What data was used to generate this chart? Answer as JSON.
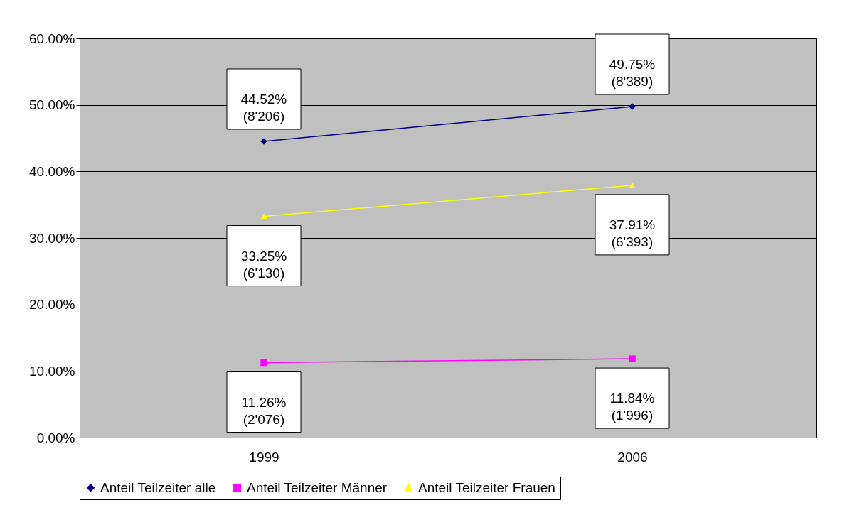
{
  "chart_data": {
    "type": "line",
    "categories": [
      "1999",
      "2006"
    ],
    "series": [
      {
        "name": "Anteil Teilzeiter alle",
        "color": "#000080",
        "marker": "diamond",
        "values": [
          44.52,
          49.75
        ],
        "value_labels": [
          "44.52%\n(8'206)",
          "49.75%\n(8'389)"
        ]
      },
      {
        "name": "Anteil Teilzeiter Männer",
        "color": "#ff00ff",
        "marker": "square",
        "values": [
          11.26,
          11.84
        ],
        "value_labels": [
          "11.26%\n(2'076)",
          "11.84%\n(1'996)"
        ]
      },
      {
        "name": "Anteil Teilzeiter Frauen",
        "color": "#ffff00",
        "marker": "triangle",
        "values": [
          33.25,
          37.91
        ],
        "value_labels": [
          "33.25%\n(6'130)",
          "37.91%\n(6'393)"
        ]
      }
    ],
    "ylim": [
      0,
      60
    ],
    "yticks": [
      {
        "value": 0,
        "label": "0.00%"
      },
      {
        "value": 10,
        "label": "10.00%"
      },
      {
        "value": 20,
        "label": "20.00%"
      },
      {
        "value": 30,
        "label": "30.00%"
      },
      {
        "value": 40,
        "label": "40.00%"
      },
      {
        "value": 50,
        "label": "50.00%"
      },
      {
        "value": 60,
        "label": "60.00%"
      }
    ],
    "grid": "y",
    "legend": "bottom",
    "line_style": "solid"
  }
}
